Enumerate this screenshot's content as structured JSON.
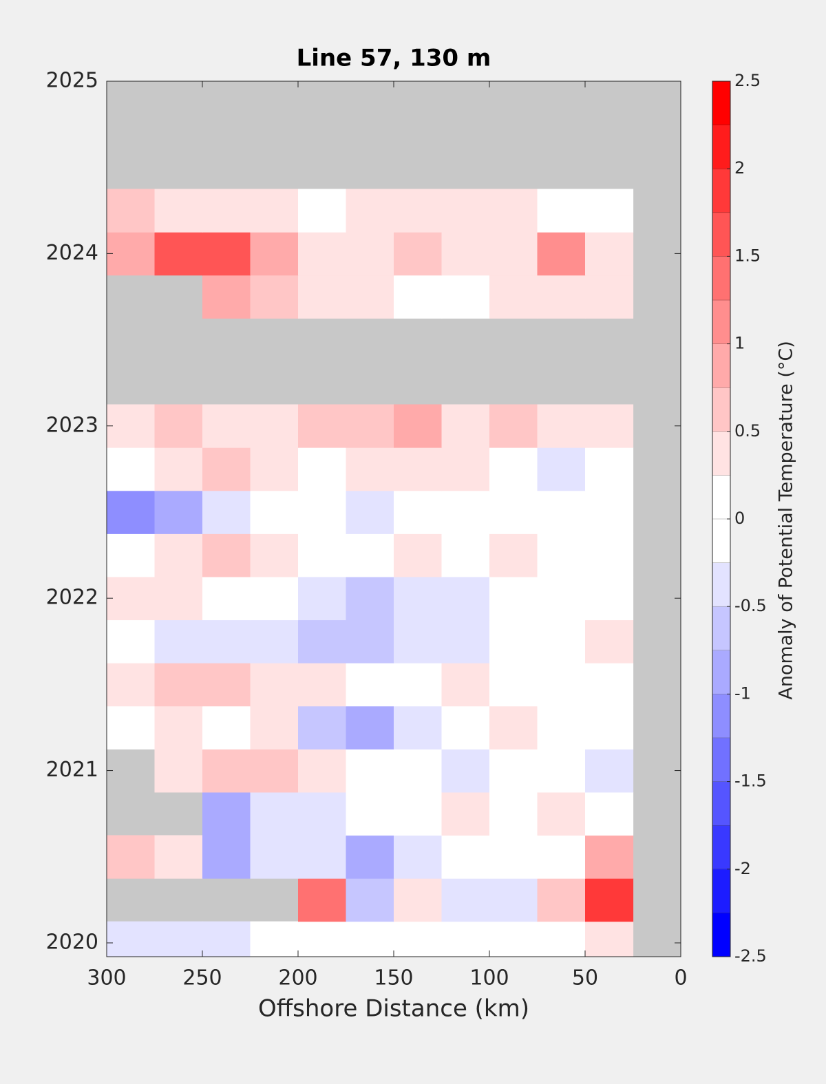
{
  "chart_data": {
    "type": "heatmap",
    "title": "Line 57, 130 m",
    "xlabel": "Offshore Distance (km)",
    "colorbar_label": "Anomaly of Potential Temperature (°C)",
    "xlim": [
      300,
      0
    ],
    "xticks": [
      300,
      250,
      200,
      150,
      100,
      50,
      0
    ],
    "ylim": [
      2019.92,
      2025
    ],
    "yticks": [
      2020,
      2021,
      2022,
      2023,
      2024,
      2025
    ],
    "clim": [
      -2.5,
      2.5
    ],
    "cticks": [
      -2.5,
      -2,
      -1.5,
      -1,
      -0.5,
      0,
      0.5,
      1,
      1.5,
      2,
      2.5
    ],
    "colormap": [
      "#0000ff",
      "#1c1cff",
      "#3939ff",
      "#5555ff",
      "#7171ff",
      "#8e8eff",
      "#aaaaff",
      "#c6c6ff",
      "#e3e3ff",
      "#ffffff",
      "#ffffff",
      "#ffe3e3",
      "#ffc6c6",
      "#ffaaaa",
      "#ff8e8e",
      "#ff7171",
      "#ff5555",
      "#ff3939",
      "#ff1c1c",
      "#ff0000"
    ],
    "nan_color": "#c8c8c8",
    "x": [
      287.5,
      262.5,
      237.5,
      212.5,
      187.5,
      162.5,
      137.5,
      112.5,
      87.5,
      62.5,
      37.5,
      12.5
    ],
    "y": [
      2020,
      2020.25,
      2020.5,
      2020.75,
      2021,
      2021.25,
      2021.5,
      2021.75,
      2022,
      2022.25,
      2022.5,
      2022.75,
      2023,
      2023.25,
      2023.5,
      2023.75,
      2024,
      2024.25
    ],
    "z": [
      [
        -0.3,
        -0.3,
        -0.3,
        0,
        0,
        0,
        0,
        0,
        0,
        0,
        0.3,
        null
      ],
      [
        null,
        null,
        null,
        null,
        1.3,
        -0.6,
        0.3,
        -0.3,
        -0.3,
        0.5,
        1.8,
        null
      ],
      [
        0.7,
        0.3,
        -0.8,
        -0.5,
        -0.3,
        -0.9,
        -0.3,
        0,
        0,
        0,
        0.8,
        null
      ],
      [
        null,
        null,
        -0.8,
        -0.5,
        -0.3,
        0,
        0,
        0.3,
        0,
        0.3,
        0,
        null
      ],
      [
        null,
        0.4,
        0.6,
        0.5,
        0.3,
        0,
        0,
        -0.3,
        0,
        0,
        -0.4,
        null
      ],
      [
        0,
        0.3,
        0,
        0.3,
        -0.6,
        -0.8,
        -0.4,
        0,
        0.3,
        0,
        0,
        null
      ],
      [
        0.4,
        0.7,
        0.5,
        0.3,
        0.3,
        0,
        0,
        0.3,
        0,
        0,
        0,
        null
      ],
      [
        0,
        -0.3,
        -0.3,
        -0.5,
        -0.7,
        -0.6,
        -0.5,
        -0.3,
        0,
        0,
        0.3,
        null
      ],
      [
        0.3,
        0.3,
        0,
        0,
        -0.3,
        -0.6,
        -0.5,
        -0.3,
        0,
        0,
        0,
        null
      ],
      [
        0,
        0.3,
        0.5,
        0.4,
        0,
        0,
        0.3,
        0,
        0.3,
        0,
        0,
        null
      ],
      [
        -1.2,
        -0.8,
        -0.4,
        0,
        0,
        -0.3,
        0,
        0,
        0,
        0,
        0,
        null
      ],
      [
        0,
        0.3,
        0.6,
        0.3,
        0,
        0.3,
        0.3,
        0.3,
        0,
        -0.4,
        0,
        null
      ],
      [
        0.4,
        0.6,
        0.3,
        0.3,
        0.5,
        0.7,
        0.8,
        0.3,
        0.5,
        0.4,
        0.3,
        null
      ],
      [
        null,
        null,
        null,
        null,
        null,
        null,
        null,
        null,
        null,
        null,
        null,
        null
      ],
      [
        null,
        null,
        null,
        null,
        null,
        null,
        null,
        null,
        null,
        null,
        null,
        null
      ],
      [
        null,
        null,
        0.8,
        0.5,
        0.3,
        0.3,
        0,
        0,
        0.3,
        0.3,
        0.3,
        null
      ],
      [
        0.8,
        1.5,
        1.6,
        0.9,
        0.4,
        0.3,
        0.5,
        0.3,
        0.3,
        1.0,
        0.3,
        null
      ],
      [
        0.6,
        0.4,
        0.3,
        0.3,
        0,
        0.3,
        0.3,
        0.3,
        0.3,
        0,
        0,
        null
      ]
    ]
  }
}
